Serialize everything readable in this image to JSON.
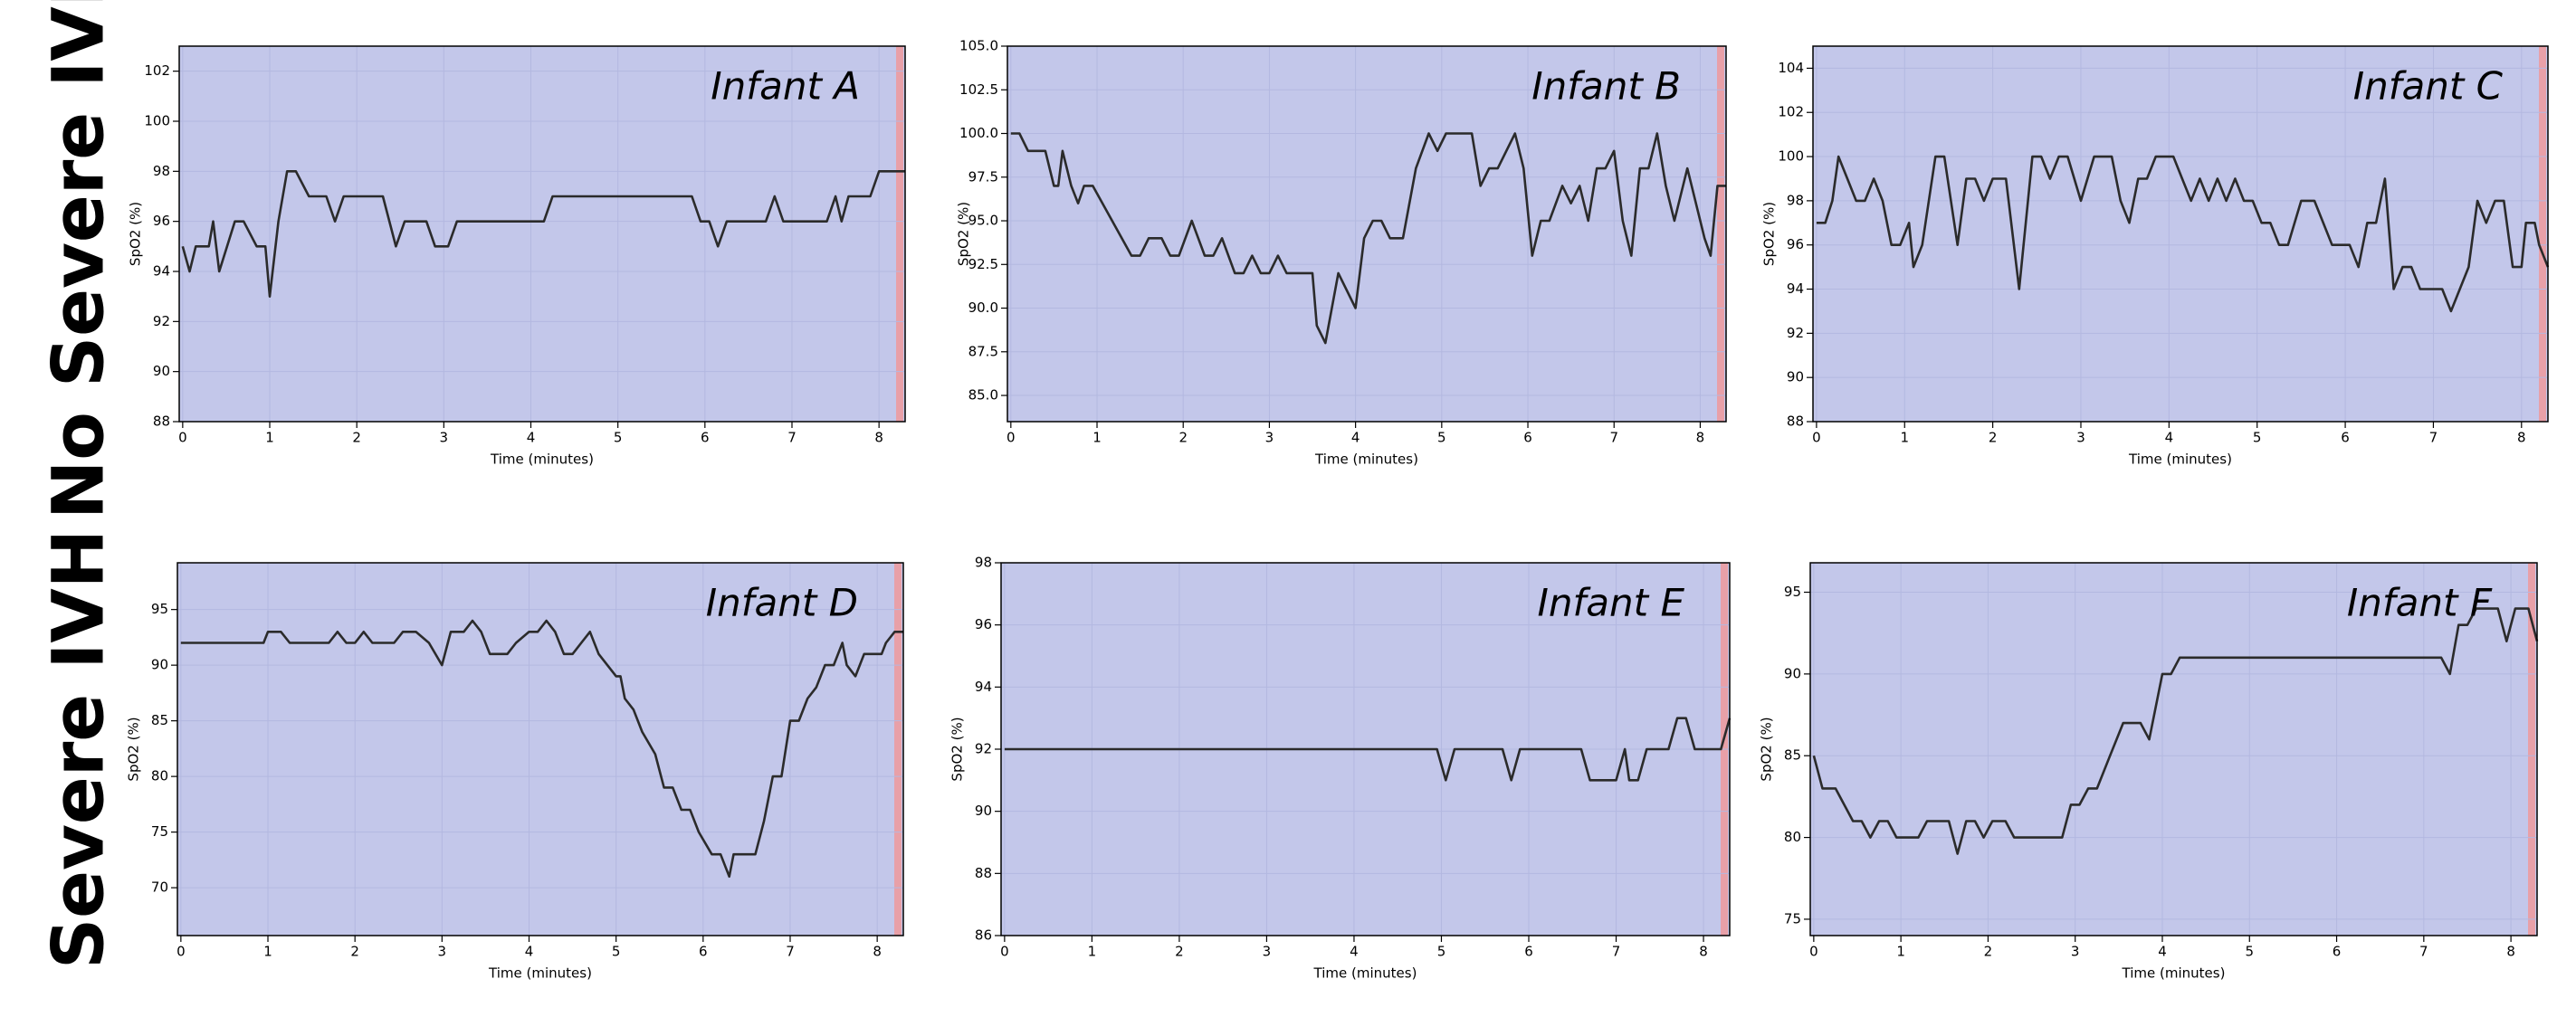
{
  "row_labels": [
    "No Severe IVH",
    "Severe IVH"
  ],
  "chart_data": [
    {
      "type": "line",
      "title": "Infant A",
      "xlabel": "Time (minutes)",
      "ylabel": "SpO2 (%)",
      "color": "#2b2b2b",
      "xlim": [
        -0.04,
        8.3
      ],
      "xticks": [
        0,
        1,
        2,
        3,
        4,
        5,
        6,
        7,
        8
      ],
      "ylim": [
        88,
        103
      ],
      "yticks": [
        88,
        90,
        92,
        94,
        96,
        98,
        100,
        102
      ],
      "x": [
        0,
        0.08,
        0.15,
        0.3,
        0.35,
        0.42,
        0.6,
        0.7,
        0.85,
        0.95,
        1.0,
        1.1,
        1.2,
        1.3,
        1.45,
        1.65,
        1.75,
        1.85,
        2.3,
        2.45,
        2.55,
        2.8,
        2.9,
        3.05,
        3.15,
        4.15,
        4.25,
        5.85,
        5.95,
        6.05,
        6.15,
        6.25,
        6.7,
        6.8,
        6.9,
        7.4,
        7.5,
        7.57,
        7.65,
        7.9,
        8.0,
        8.3
      ],
      "values": [
        95,
        94,
        95,
        95,
        96,
        94,
        96,
        96,
        95,
        95,
        93,
        96,
        98,
        98,
        97,
        97,
        96,
        97,
        97,
        95,
        96,
        96,
        95,
        95,
        96,
        96,
        97,
        97,
        96,
        96,
        95,
        96,
        96,
        97,
        96,
        96,
        97,
        96,
        97,
        97,
        98,
        98
      ]
    },
    {
      "type": "line",
      "title": "Infant B",
      "xlabel": "Time (minutes)",
      "ylabel": "SpO2 (%)",
      "color": "#2b2b2b",
      "xlim": [
        -0.04,
        8.3
      ],
      "xticks": [
        0,
        1,
        2,
        3,
        4,
        5,
        6,
        7,
        8
      ],
      "ylim": [
        83.5,
        105
      ],
      "yticks": [
        {
          "value": 85,
          "label": "85.0"
        },
        {
          "value": 87.5,
          "label": "87.5"
        },
        {
          "value": 90,
          "label": "90.0"
        },
        {
          "value": 92.5,
          "label": "92.5"
        },
        {
          "value": 95,
          "label": "95.0"
        },
        {
          "value": 97.5,
          "label": "97.5"
        },
        {
          "value": 100,
          "label": "100.0"
        },
        {
          "value": 102.5,
          "label": "102.5"
        },
        {
          "value": 105,
          "label": "105.0"
        }
      ],
      "x": [
        0,
        0.1,
        0.2,
        0.4,
        0.5,
        0.55,
        0.6,
        0.7,
        0.78,
        0.85,
        0.95,
        1.4,
        1.5,
        1.6,
        1.75,
        1.85,
        1.95,
        2.1,
        2.25,
        2.35,
        2.45,
        2.6,
        2.7,
        2.8,
        2.9,
        3.0,
        3.1,
        3.2,
        3.5,
        3.55,
        3.65,
        3.8,
        4.0,
        4.1,
        4.2,
        4.3,
        4.4,
        4.55,
        4.7,
        4.85,
        4.95,
        5.05,
        5.35,
        5.45,
        5.55,
        5.65,
        5.85,
        5.95,
        6.05,
        6.15,
        6.25,
        6.4,
        6.5,
        6.6,
        6.7,
        6.8,
        6.9,
        7.0,
        7.1,
        7.2,
        7.3,
        7.4,
        7.5,
        7.6,
        7.7,
        7.85,
        7.95,
        8.05,
        8.12,
        8.2,
        8.3
      ],
      "values": [
        100,
        100,
        99,
        99,
        97,
        97,
        99,
        97,
        96,
        97,
        97,
        93,
        93,
        94,
        94,
        93,
        93,
        95,
        93,
        93,
        94,
        92,
        92,
        93,
        92,
        92,
        93,
        92,
        92,
        89,
        88,
        92,
        90,
        94,
        95,
        95,
        94,
        94,
        98,
        100,
        99,
        100,
        100,
        97,
        98,
        98,
        100,
        98,
        93,
        95,
        95,
        97,
        96,
        97,
        95,
        98,
        98,
        99,
        95,
        93,
        98,
        98,
        100,
        97,
        95,
        98,
        96,
        94,
        93,
        97,
        97
      ]
    },
    {
      "type": "line",
      "title": "Infant C",
      "xlabel": "Time (minutes)",
      "ylabel": "SpO2 (%)",
      "color": "#2b2b2b",
      "xlim": [
        -0.04,
        8.3
      ],
      "xticks": [
        0,
        1,
        2,
        3,
        4,
        5,
        6,
        7,
        8
      ],
      "ylim": [
        88,
        105
      ],
      "yticks": [
        88,
        90,
        92,
        94,
        96,
        98,
        100,
        102,
        104
      ],
      "x": [
        0,
        0.1,
        0.18,
        0.25,
        0.35,
        0.45,
        0.55,
        0.65,
        0.75,
        0.85,
        0.95,
        1.05,
        1.1,
        1.2,
        1.35,
        1.45,
        1.6,
        1.7,
        1.8,
        1.9,
        2.0,
        2.15,
        2.3,
        2.45,
        2.55,
        2.65,
        2.75,
        2.85,
        3.0,
        3.15,
        3.35,
        3.45,
        3.55,
        3.65,
        3.75,
        3.85,
        4.05,
        4.15,
        4.25,
        4.35,
        4.45,
        4.55,
        4.65,
        4.75,
        4.85,
        4.95,
        5.05,
        5.15,
        5.25,
        5.35,
        5.5,
        5.65,
        5.85,
        6.05,
        6.15,
        6.25,
        6.35,
        6.45,
        6.55,
        6.65,
        6.75,
        6.85,
        7.1,
        7.2,
        7.4,
        7.5,
        7.6,
        7.7,
        7.8,
        7.9,
        8.0,
        8.05,
        8.15,
        8.2,
        8.3
      ],
      "values": [
        97,
        97,
        98,
        100,
        99,
        98,
        98,
        99,
        98,
        96,
        96,
        97,
        95,
        96,
        100,
        100,
        96,
        99,
        99,
        98,
        99,
        99,
        94,
        100,
        100,
        99,
        100,
        100,
        98,
        100,
        100,
        98,
        97,
        99,
        99,
        100,
        100,
        99,
        98,
        99,
        98,
        99,
        98,
        99,
        98,
        98,
        97,
        97,
        96,
        96,
        98,
        98,
        96,
        96,
        95,
        97,
        97,
        99,
        94,
        95,
        95,
        94,
        94,
        93,
        95,
        98,
        97,
        98,
        98,
        95,
        95,
        97,
        97,
        96,
        95
      ]
    },
    {
      "type": "line",
      "title": "Infant D",
      "xlabel": "Time (minutes)",
      "ylabel": "SpO2 (%)",
      "color": "#2b2b2b",
      "xlim": [
        -0.04,
        8.3
      ],
      "xticks": [
        0,
        1,
        2,
        3,
        4,
        5,
        6,
        7,
        8
      ],
      "ylim": [
        65.7,
        99.2
      ],
      "yticks": [
        70,
        75,
        80,
        85,
        90,
        95
      ],
      "x": [
        0,
        0.95,
        1.0,
        1.15,
        1.25,
        1.7,
        1.8,
        1.9,
        2.0,
        2.1,
        2.2,
        2.45,
        2.55,
        2.7,
        2.85,
        3.0,
        3.1,
        3.25,
        3.35,
        3.45,
        3.55,
        3.75,
        3.85,
        4.0,
        4.1,
        4.2,
        4.3,
        4.4,
        4.5,
        4.6,
        4.7,
        4.8,
        4.9,
        5.0,
        5.05,
        5.1,
        5.2,
        5.3,
        5.45,
        5.55,
        5.65,
        5.75,
        5.85,
        5.95,
        6.1,
        6.2,
        6.3,
        6.35,
        6.6,
        6.7,
        6.8,
        6.9,
        7.0,
        7.1,
        7.2,
        7.3,
        7.4,
        7.5,
        7.6,
        7.65,
        7.75,
        7.85,
        7.95,
        8.05,
        8.1,
        8.2,
        8.3
      ],
      "values": [
        92,
        92,
        93,
        93,
        92,
        92,
        93,
        92,
        92,
        93,
        92,
        92,
        93,
        93,
        92,
        90,
        93,
        93,
        94,
        93,
        91,
        91,
        92,
        93,
        93,
        94,
        93,
        91,
        91,
        92,
        93,
        91,
        90,
        89,
        89,
        87,
        86,
        84,
        82,
        79,
        79,
        77,
        77,
        75,
        73,
        73,
        71,
        73,
        73,
        76,
        80,
        80,
        85,
        85,
        87,
        88,
        90,
        90,
        92,
        90,
        89,
        91,
        91,
        91,
        92,
        93,
        93
      ]
    },
    {
      "type": "line",
      "title": "Infant E",
      "xlabel": "Time (minutes)",
      "ylabel": "SpO2 (%)",
      "color": "#2b2b2b",
      "xlim": [
        -0.04,
        8.3
      ],
      "xticks": [
        0,
        1,
        2,
        3,
        4,
        5,
        6,
        7,
        8
      ],
      "ylim": [
        86,
        98
      ],
      "yticks": [
        86,
        88,
        90,
        92,
        94,
        96,
        98
      ],
      "x": [
        0,
        4.95,
        5.05,
        5.15,
        5.7,
        5.8,
        5.9,
        6.6,
        6.7,
        7.0,
        7.1,
        7.15,
        7.25,
        7.35,
        7.6,
        7.7,
        7.8,
        7.9,
        8.2,
        8.3
      ],
      "values": [
        92,
        92,
        91,
        92,
        92,
        91,
        92,
        92,
        91,
        91,
        92,
        91,
        91,
        92,
        92,
        93,
        93,
        92,
        92,
        93
      ]
    },
    {
      "type": "line",
      "title": "Infant F",
      "xlabel": "Time (minutes)",
      "ylabel": "SpO2 (%)",
      "color": "#2b2b2b",
      "xlim": [
        -0.04,
        8.3
      ],
      "xticks": [
        0,
        1,
        2,
        3,
        4,
        5,
        6,
        7,
        8
      ],
      "ylim": [
        74,
        96.8
      ],
      "yticks": [
        75,
        80,
        85,
        90,
        95
      ],
      "x": [
        0,
        0.1,
        0.25,
        0.45,
        0.55,
        0.65,
        0.75,
        0.85,
        0.95,
        1.2,
        1.3,
        1.55,
        1.65,
        1.75,
        1.85,
        1.95,
        2.05,
        2.2,
        2.3,
        2.85,
        2.95,
        3.05,
        3.15,
        3.25,
        3.4,
        3.55,
        3.75,
        3.85,
        4.0,
        4.1,
        4.2,
        7.2,
        7.3,
        7.4,
        7.5,
        7.6,
        7.85,
        7.95,
        8.05,
        8.2,
        8.3
      ],
      "values": [
        85,
        83,
        83,
        81,
        81,
        80,
        81,
        81,
        80,
        80,
        81,
        81,
        79,
        81,
        81,
        80,
        81,
        81,
        80,
        80,
        82,
        82,
        83,
        83,
        85,
        87,
        87,
        86,
        90,
        90,
        91,
        91,
        90,
        93,
        93,
        94,
        94,
        92,
        94,
        94,
        92
      ]
    }
  ]
}
